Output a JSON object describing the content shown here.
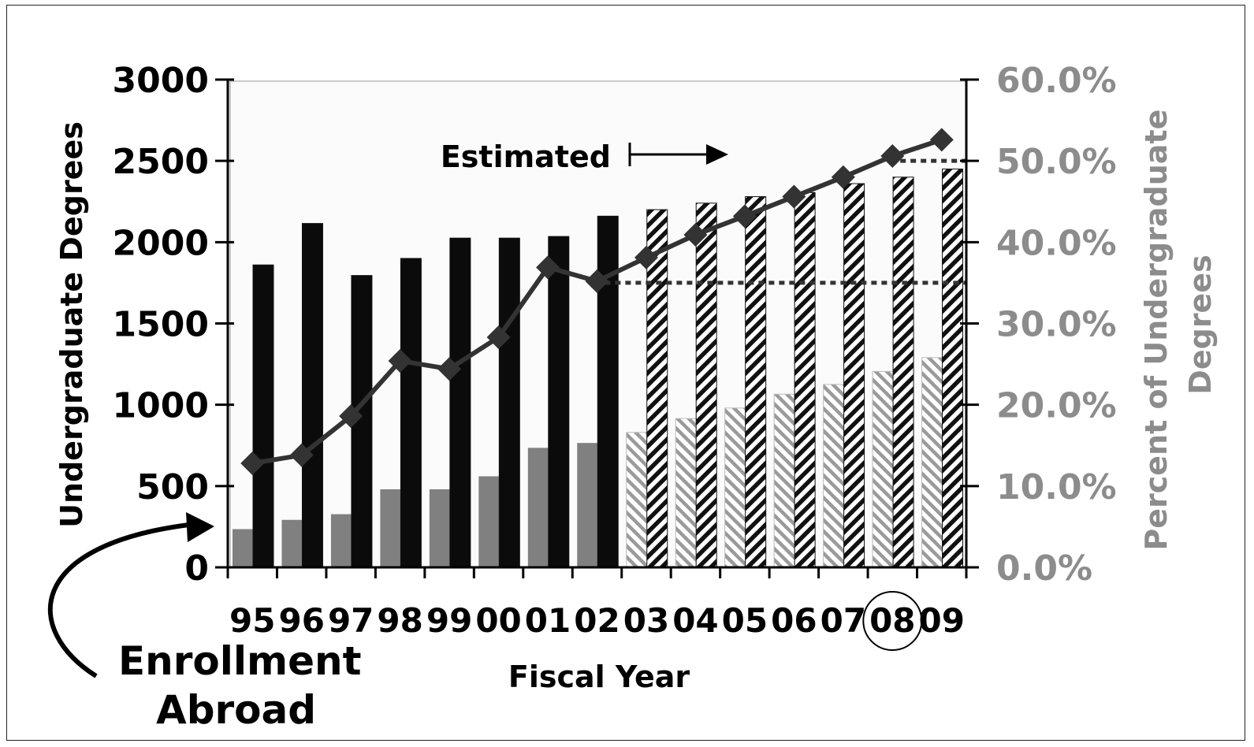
{
  "chart_data": {
    "type": "bar",
    "categories": [
      "95",
      "96",
      "97",
      "98",
      "99",
      "00",
      "01",
      "02",
      "03",
      "04",
      "05",
      "06",
      "07",
      "08",
      "09"
    ],
    "estimated_from_index": 8,
    "series": [
      {
        "axis": "left",
        "color": "#808080",
        "values": [
          235,
          292,
          327,
          480,
          480,
          560,
          735,
          765,
          830,
          915,
          980,
          1065,
          1125,
          1205,
          1290
        ]
      },
      {
        "axis": "left",
        "color": "#0b0b0b",
        "values": [
          1860,
          2115,
          1795,
          1900,
          2025,
          2025,
          2035,
          2160,
          2200,
          2240,
          2280,
          2305,
          2360,
          2400,
          2450
        ]
      },
      {
        "axis": "right",
        "type": "line",
        "marker": "diamond",
        "color": "#333333",
        "values": [
          12.8,
          13.8,
          18.6,
          25.4,
          24.4,
          28.3,
          36.9,
          35.2,
          38.1,
          40.9,
          43.2,
          45.6,
          48.0,
          50.6,
          52.6
        ]
      }
    ],
    "reference_lines": [
      {
        "value": 35.0,
        "axis": "right",
        "style": "dotted",
        "from_category": "02"
      },
      {
        "value": 50.0,
        "axis": "right",
        "style": "dotted",
        "from_category": "08"
      }
    ],
    "xlabel": "Fiscal Year",
    "ylabel": "Undergraduate Degrees",
    "y2label": "Percent of Undergraduate Degrees",
    "ylim": [
      0,
      3000
    ],
    "y2lim": [
      0,
      60
    ],
    "yticks": [
      "0",
      "500",
      "1000",
      "1500",
      "2000",
      "2500",
      "3000"
    ],
    "y2ticks": [
      "0.0%",
      "10.0%",
      "20.0%",
      "30.0%",
      "40.0%",
      "50.0%",
      "60.0%"
    ],
    "highlighted_category": "08",
    "annotations": {
      "estimated": "Estimated",
      "enrollment_line1": "Enrollment",
      "enrollment_line2": "Abroad"
    },
    "colors": {
      "left_axis_text": "#000000",
      "right_axis_text": "#8c8c8c",
      "plot_background": "#fbfbfb"
    }
  }
}
